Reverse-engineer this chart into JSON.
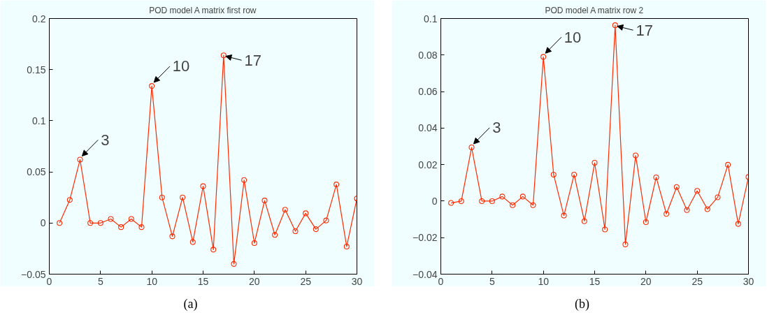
{
  "chart_data": [
    {
      "type": "line",
      "title": "POD model A matrix first row",
      "x": [
        1,
        2,
        3,
        4,
        5,
        6,
        7,
        8,
        9,
        10,
        11,
        12,
        13,
        14,
        15,
        16,
        17,
        18,
        19,
        20,
        21,
        22,
        23,
        24,
        25,
        26,
        27,
        28,
        29,
        30
      ],
      "series": [
        {
          "color": "#ff2a00",
          "values": [
            0,
            0.0226,
            0.062,
            0,
            0,
            0.004,
            -0.004,
            0.004,
            -0.004,
            0.134,
            0.025,
            -0.013,
            0.025,
            -0.0186,
            0.036,
            -0.026,
            0.164,
            -0.04,
            0.042,
            -0.0196,
            0.022,
            -0.0116,
            0.013,
            -0.008,
            0.0095,
            -0.006,
            0.0025,
            0.0377,
            -0.023,
            0.024
          ]
        }
      ],
      "marker": "circle",
      "line_style": "solid",
      "grid": false,
      "xlim": [
        0,
        30
      ],
      "xticks": [
        0,
        5,
        10,
        15,
        20,
        25,
        30
      ],
      "ylim": [
        -0.05,
        0.2
      ],
      "yticks": [
        {
          "value": -0.05,
          "label": "−0.05"
        },
        0,
        0.05,
        0.1,
        0.15,
        0.2
      ],
      "annotations": [
        {
          "text": "3",
          "x": 3,
          "y": 0.062
        },
        {
          "text": "10",
          "x": 10,
          "y": 0.134
        },
        {
          "text": "17",
          "x": 17,
          "y": 0.164
        },
        "(a)"
      ]
    },
    {
      "type": "line",
      "title": "POD model A matrix row 2",
      "x": [
        1,
        2,
        3,
        4,
        5,
        6,
        7,
        8,
        9,
        10,
        11,
        12,
        13,
        14,
        15,
        16,
        17,
        18,
        19,
        20,
        21,
        22,
        23,
        24,
        25,
        26,
        27,
        28,
        29,
        30
      ],
      "series": [
        {
          "color": "#ff2a00",
          "values": [
            -0.001,
            0,
            0.0294,
            0,
            0,
            0.0025,
            -0.0022,
            0.0025,
            -0.0022,
            0.079,
            0.0145,
            -0.0079,
            0.0145,
            -0.011,
            0.021,
            -0.0155,
            0.0963,
            -0.0237,
            0.025,
            -0.0115,
            0.013,
            -0.007,
            0.0077,
            -0.0049,
            0.0056,
            -0.0044,
            0.0021,
            0.0199,
            -0.0125,
            0.0132
          ]
        }
      ],
      "marker": "circle",
      "line_style": "solid",
      "grid": false,
      "xlim": [
        0,
        30
      ],
      "xticks": [
        0,
        5,
        10,
        15,
        20,
        25,
        30
      ],
      "ylim": [
        -0.04,
        0.1
      ],
      "yticks": [
        {
          "value": -0.04,
          "label": "−0.04"
        },
        {
          "value": -0.02,
          "label": "−0.02"
        },
        0,
        0.02,
        0.04,
        0.06,
        0.08,
        0.1
      ],
      "annotations": [
        {
          "text": "3",
          "x": 3,
          "y": 0.0294
        },
        {
          "text": "10",
          "x": 10,
          "y": 0.079
        },
        {
          "text": "17",
          "x": 17,
          "y": 0.0963
        },
        "(b)"
      ]
    }
  ]
}
